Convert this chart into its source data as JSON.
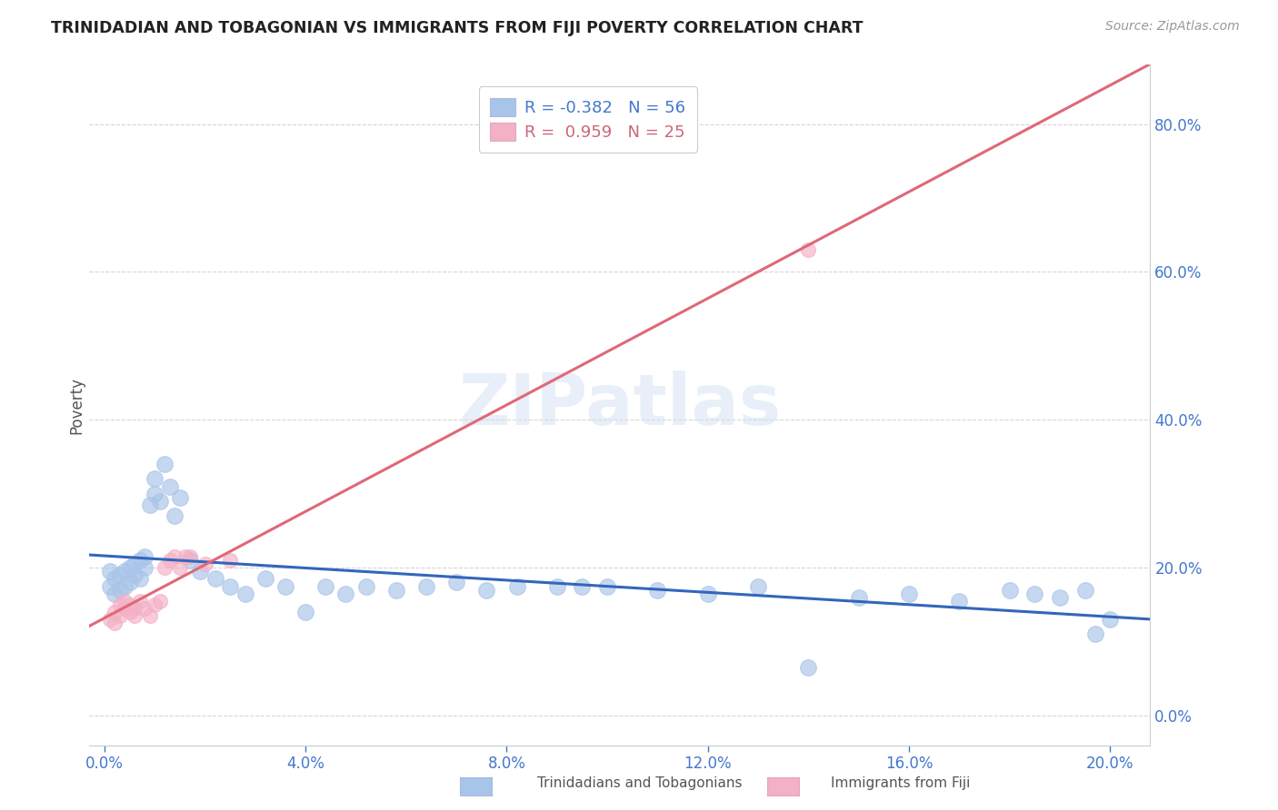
{
  "title": "TRINIDADIAN AND TOBAGONIAN VS IMMIGRANTS FROM FIJI POVERTY CORRELATION CHART",
  "source": "Source: ZipAtlas.com",
  "ylabel_label": "Poverty",
  "x_ticks": [
    0.0,
    0.04,
    0.08,
    0.12,
    0.16,
    0.2
  ],
  "x_tick_labels": [
    "0.0%",
    "4.0%",
    "8.0%",
    "12.0%",
    "16.0%",
    "20.0%"
  ],
  "y_ticks": [
    0.0,
    0.2,
    0.4,
    0.6,
    0.8
  ],
  "y_tick_labels": [
    "0.0%",
    "20.0%",
    "40.0%",
    "60.0%",
    "80.0%"
  ],
  "xlim": [
    -0.003,
    0.208
  ],
  "ylim": [
    -0.04,
    0.88
  ],
  "color_blue": "#a8c4e8",
  "color_pink": "#f4b0c5",
  "line_color_blue": "#3366bb",
  "line_color_pink": "#e06878",
  "watermark": "ZIPatlas",
  "legend_label1": "Trinidadians and Tobagonians",
  "legend_label2": "Immigrants from Fiji",
  "blue_scatter_x": [
    0.001,
    0.001,
    0.002,
    0.002,
    0.003,
    0.003,
    0.004,
    0.004,
    0.005,
    0.005,
    0.006,
    0.006,
    0.007,
    0.007,
    0.008,
    0.008,
    0.009,
    0.01,
    0.01,
    0.011,
    0.012,
    0.013,
    0.014,
    0.015,
    0.017,
    0.019,
    0.022,
    0.025,
    0.028,
    0.032,
    0.036,
    0.04,
    0.044,
    0.048,
    0.052,
    0.058,
    0.064,
    0.07,
    0.076,
    0.082,
    0.09,
    0.095,
    0.1,
    0.11,
    0.12,
    0.13,
    0.14,
    0.15,
    0.16,
    0.17,
    0.18,
    0.185,
    0.19,
    0.195,
    0.197,
    0.2
  ],
  "blue_scatter_y": [
    0.195,
    0.175,
    0.185,
    0.165,
    0.19,
    0.17,
    0.195,
    0.175,
    0.2,
    0.18,
    0.205,
    0.19,
    0.21,
    0.185,
    0.215,
    0.2,
    0.285,
    0.3,
    0.32,
    0.29,
    0.34,
    0.31,
    0.27,
    0.295,
    0.21,
    0.195,
    0.185,
    0.175,
    0.165,
    0.185,
    0.175,
    0.14,
    0.175,
    0.165,
    0.175,
    0.17,
    0.175,
    0.18,
    0.17,
    0.175,
    0.175,
    0.175,
    0.175,
    0.17,
    0.165,
    0.175,
    0.065,
    0.16,
    0.165,
    0.155,
    0.17,
    0.165,
    0.16,
    0.17,
    0.11,
    0.13
  ],
  "pink_scatter_x": [
    0.001,
    0.002,
    0.002,
    0.003,
    0.003,
    0.004,
    0.004,
    0.005,
    0.005,
    0.006,
    0.006,
    0.007,
    0.008,
    0.009,
    0.01,
    0.011,
    0.012,
    0.013,
    0.014,
    0.015,
    0.016,
    0.017,
    0.02,
    0.025,
    0.14
  ],
  "pink_scatter_y": [
    0.13,
    0.125,
    0.14,
    0.135,
    0.15,
    0.145,
    0.155,
    0.15,
    0.14,
    0.145,
    0.135,
    0.155,
    0.145,
    0.135,
    0.15,
    0.155,
    0.2,
    0.21,
    0.215,
    0.2,
    0.215,
    0.215,
    0.205,
    0.21,
    0.63
  ]
}
